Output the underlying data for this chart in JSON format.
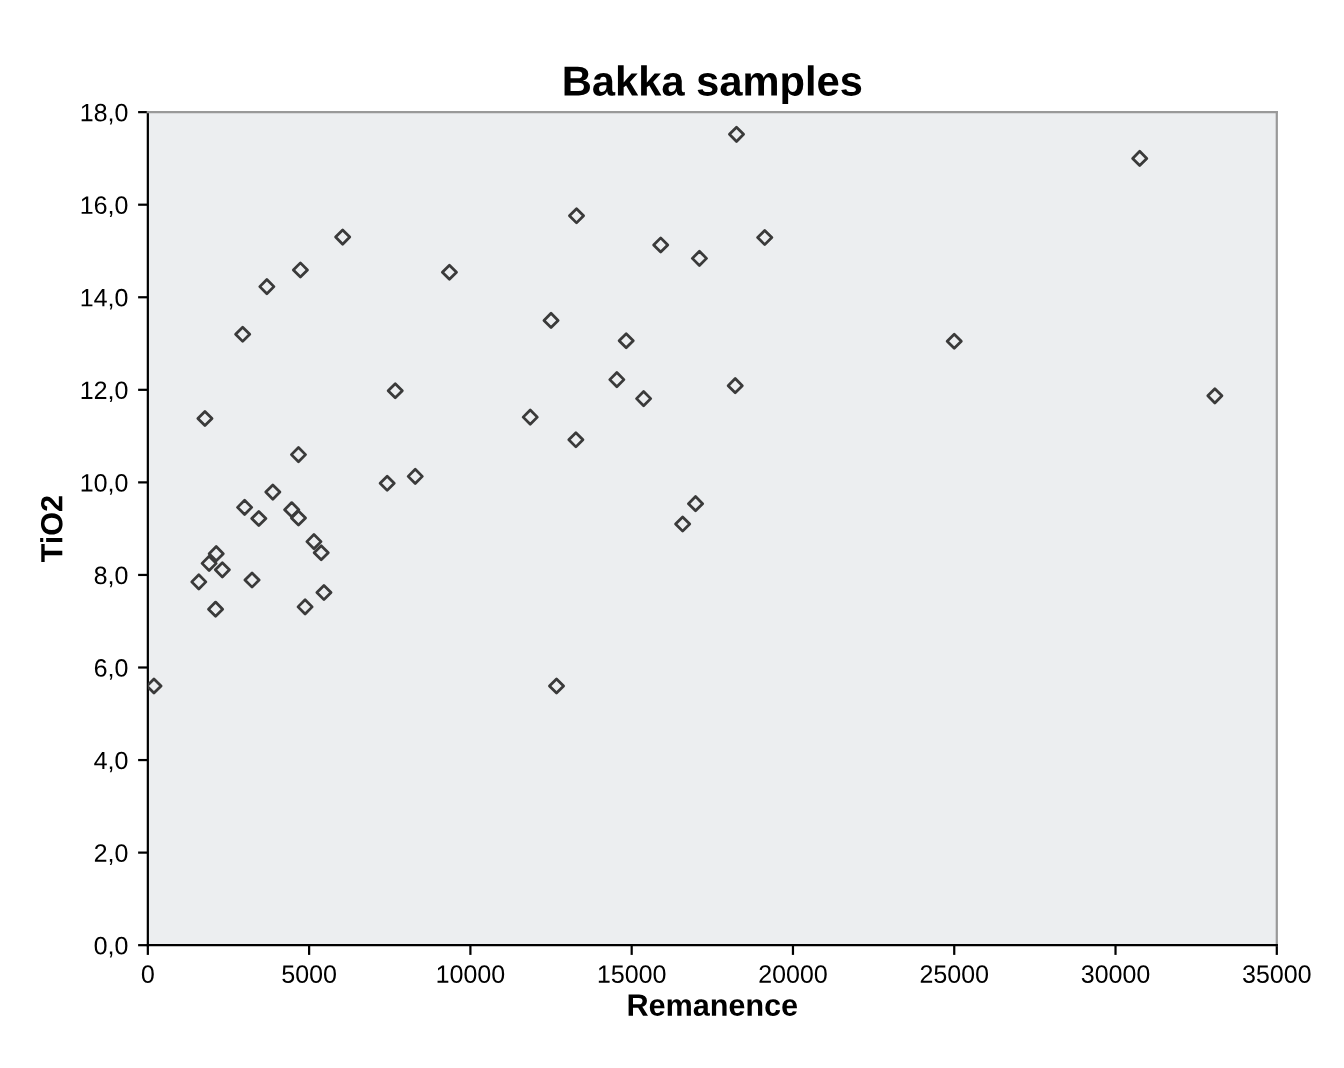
{
  "chart_data": {
    "type": "scatter",
    "title": "Bakka samples",
    "xlabel": "Remanence",
    "ylabel": "TiO2",
    "x": [
      190,
      1580,
      1900,
      2120,
      2310,
      2100,
      3000,
      3230,
      3440,
      3875,
      4460,
      4670,
      4670,
      4875,
      5150,
      5375,
      5460,
      7420,
      8290,
      12670,
      16580,
      16980,
      1770,
      2940,
      3690,
      4730,
      6040,
      9350,
      7670,
      11855,
      12500,
      13270,
      13290,
      14540,
      14830,
      15370,
      15900,
      17100,
      18250,
      19125,
      18210,
      25000,
      30750,
      33080
    ],
    "series": [
      {
        "color": "#3a3a3a",
        "values": [
          5.6,
          7.85,
          8.25,
          8.46,
          8.11,
          7.26,
          9.46,
          7.89,
          9.22,
          9.79,
          9.41,
          9.23,
          10.6,
          7.31,
          8.72,
          8.48,
          7.62,
          9.98,
          10.13,
          5.6,
          9.1,
          9.54,
          11.38,
          13.2,
          14.23,
          14.59,
          15.3,
          14.54,
          11.98,
          11.41,
          13.5,
          10.92,
          15.76,
          12.22,
          13.06,
          11.81,
          15.13,
          14.84,
          17.52,
          15.29,
          12.09,
          13.05,
          17.0,
          11.87
        ]
      }
    ],
    "xlim": [
      0,
      35000
    ],
    "xticks": [
      0,
      5000,
      10000,
      15000,
      20000,
      25000,
      30000,
      35000
    ],
    "ylim": [
      0,
      18
    ],
    "yticks": [
      {
        "value": 0,
        "label": "0,0"
      },
      {
        "value": 2,
        "label": "2,0"
      },
      {
        "value": 4,
        "label": "4,0"
      },
      {
        "value": 6,
        "label": "6,0"
      },
      {
        "value": 8,
        "label": "8,0"
      },
      {
        "value": 10,
        "label": "10,0"
      },
      {
        "value": 12,
        "label": "12,0"
      },
      {
        "value": 14,
        "label": "14,0"
      },
      {
        "value": 16,
        "label": "16,0"
      },
      {
        "value": 18,
        "label": "18,0"
      }
    ],
    "marker": "diamond",
    "grid": false,
    "legend": false
  }
}
